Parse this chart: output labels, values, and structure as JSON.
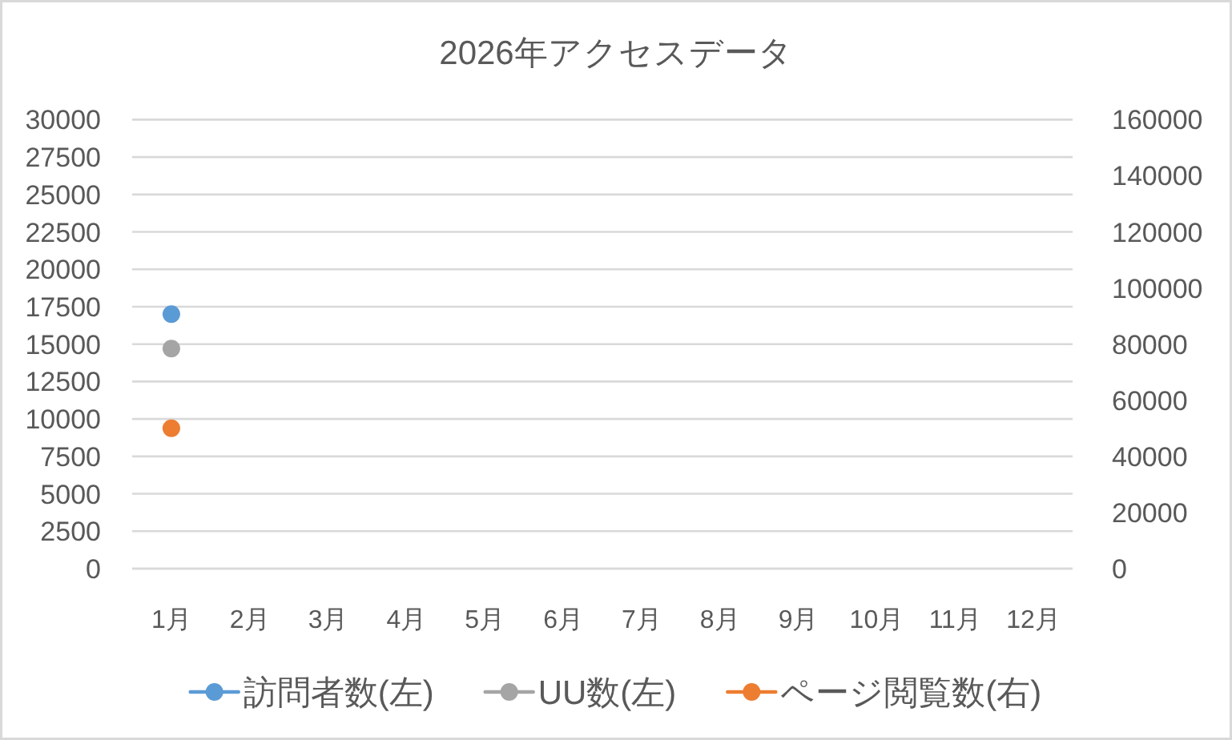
{
  "chart_data": {
    "type": "line",
    "title": "2026年アクセスデータ",
    "categories": [
      "1月",
      "2月",
      "3月",
      "4月",
      "5月",
      "6月",
      "7月",
      "8月",
      "9月",
      "10月",
      "11月",
      "12月"
    ],
    "series": [
      {
        "name": "訪問者数(左)",
        "color": "#5b9bd5",
        "values": [
          17000,
          null,
          null,
          null,
          null,
          null,
          null,
          null,
          null,
          null,
          null,
          null
        ]
      },
      {
        "name": "UU数(左)",
        "color": "#a5a5a5",
        "values": [
          14700,
          null,
          null,
          null,
          null,
          null,
          null,
          null,
          null,
          null,
          null,
          null
        ]
      },
      {
        "name": "ページ閲覧数(右)",
        "color": "#ed7d31",
        "axis": "y2",
        "values": [
          50000,
          null,
          null,
          null,
          null,
          null,
          null,
          null,
          null,
          null,
          null,
          null
        ]
      }
    ],
    "ylim": [
      0,
      30000
    ],
    "yticks": [
      0,
      2500,
      5000,
      7500,
      10000,
      12500,
      15000,
      17500,
      20000,
      22500,
      25000,
      27500,
      30000
    ],
    "y2lim": [
      0,
      160000
    ],
    "y2ticks": [
      0,
      20000,
      40000,
      60000,
      80000,
      100000,
      120000,
      140000,
      160000
    ],
    "grid": "y",
    "legend": "bottom",
    "marker": "circle",
    "line_style": "solid"
  }
}
